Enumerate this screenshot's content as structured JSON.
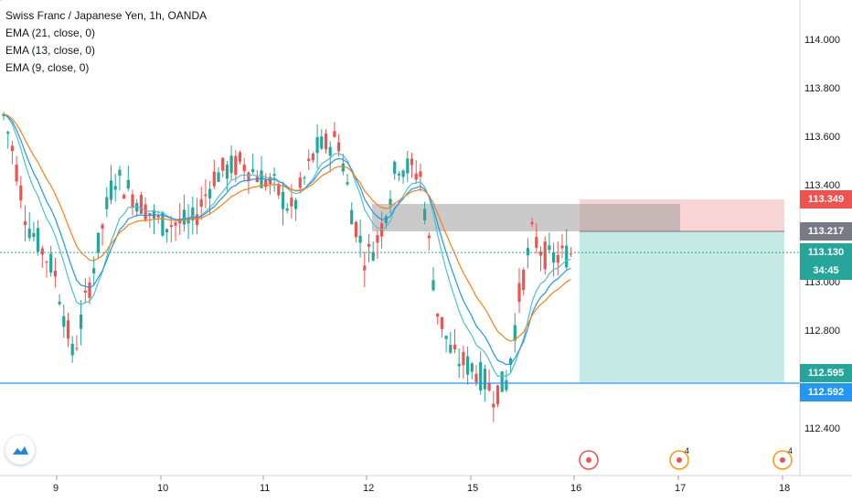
{
  "legend": {
    "title": "Swiss Franc / Japanese Yen, 1h, OANDA",
    "ema1": "EMA (21, close, 0)",
    "ema2": "EMA (13, close, 0)",
    "ema3": "EMA (9, close, 0)"
  },
  "price_axis": {
    "ticks": [
      "114.000",
      "113.800",
      "113.600",
      "113.400",
      "113.000",
      "112.800",
      "112.400"
    ]
  },
  "time_axis": {
    "ticks": [
      "9",
      "10",
      "11",
      "12",
      "15",
      "16",
      "17",
      "18"
    ]
  },
  "price_tags": {
    "stop": {
      "label": "113.349",
      "color": "#ef5350"
    },
    "entry": {
      "label": "113.217",
      "color": "#787b86"
    },
    "last": {
      "label": "113.130",
      "color": "#26a69a"
    },
    "countdown": {
      "label": "34:45",
      "color": "#26a69a"
    },
    "target": {
      "label": "112.595",
      "color": "#26a69a"
    },
    "hline": {
      "label": "112.592",
      "color": "#2196f3"
    }
  },
  "event_badges": [
    {
      "count": ""
    },
    {
      "count": "4"
    },
    {
      "count": "4"
    }
  ],
  "colors": {
    "up": "#26a69a",
    "down": "#ef5350",
    "ema21": "#ff7f0e",
    "ema13": "#2196f3",
    "ema9": "#4fc3c8",
    "zone": "#9e9e9e",
    "stop_zone": "#f8c9c9",
    "target_zone": "#b7e3dc"
  },
  "logo": "tradingview-cloud-logo"
}
